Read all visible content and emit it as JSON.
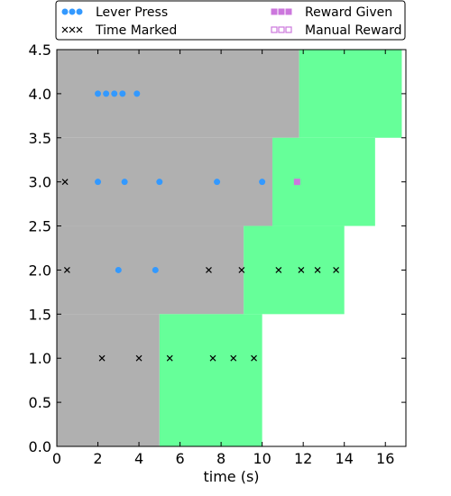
{
  "chart_data": {
    "type": "scatter",
    "title": "",
    "xlabel": "time (s)",
    "ylabel": "",
    "xlim": [
      0,
      17
    ],
    "ylim": [
      0,
      4.5
    ],
    "x_ticks": [
      0,
      2,
      4,
      6,
      8,
      10,
      12,
      14,
      16
    ],
    "y_ticks": [
      0.0,
      0.5,
      1.0,
      1.5,
      2.0,
      2.5,
      3.0,
      3.5,
      4.0,
      4.5
    ],
    "grid": false,
    "legend_position": "top",
    "colors": {
      "background_region": "#b0b0b0",
      "highlight_region": "#66ff99",
      "lever_press": "#3399ff",
      "reward": "#cc77dd",
      "time_marked": "#000000"
    },
    "regions": {
      "gray": [
        {
          "y_from": 3.5,
          "y_to": 4.5,
          "x_from": 0,
          "x_to": 11.8
        },
        {
          "y_from": 2.5,
          "y_to": 3.5,
          "x_from": 0,
          "x_to": 10.5
        },
        {
          "y_from": 1.5,
          "y_to": 2.5,
          "x_from": 0,
          "x_to": 9.1
        },
        {
          "y_from": 0.0,
          "y_to": 1.5,
          "x_from": 0,
          "x_to": 5.0
        }
      ],
      "green": [
        {
          "y_from": 3.5,
          "y_to": 4.5,
          "x_from": 11.8,
          "x_to": 16.8
        },
        {
          "y_from": 2.5,
          "y_to": 3.5,
          "x_from": 10.5,
          "x_to": 15.5
        },
        {
          "y_from": 1.5,
          "y_to": 2.5,
          "x_from": 9.1,
          "x_to": 14.0
        },
        {
          "y_from": 0.0,
          "y_to": 1.5,
          "x_from": 5.0,
          "x_to": 10.0
        }
      ]
    },
    "series": [
      {
        "name": "Lever Press",
        "marker": "circle",
        "points": [
          {
            "x": 2.0,
            "y": 4.0
          },
          {
            "x": 2.4,
            "y": 4.0
          },
          {
            "x": 2.8,
            "y": 4.0
          },
          {
            "x": 3.2,
            "y": 4.0
          },
          {
            "x": 3.9,
            "y": 4.0
          },
          {
            "x": 2.0,
            "y": 3.0
          },
          {
            "x": 3.3,
            "y": 3.0
          },
          {
            "x": 5.0,
            "y": 3.0
          },
          {
            "x": 7.8,
            "y": 3.0
          },
          {
            "x": 10.0,
            "y": 3.0
          },
          {
            "x": 3.0,
            "y": 2.0
          },
          {
            "x": 4.8,
            "y": 2.0
          }
        ]
      },
      {
        "name": "Time Marked",
        "marker": "x",
        "points": [
          {
            "x": 0.4,
            "y": 3.0
          },
          {
            "x": 0.5,
            "y": 2.0
          },
          {
            "x": 7.4,
            "y": 2.0
          },
          {
            "x": 9.0,
            "y": 2.0
          },
          {
            "x": 10.8,
            "y": 2.0
          },
          {
            "x": 11.9,
            "y": 2.0
          },
          {
            "x": 12.7,
            "y": 2.0
          },
          {
            "x": 13.6,
            "y": 2.0
          },
          {
            "x": 2.2,
            "y": 1.0
          },
          {
            "x": 4.0,
            "y": 1.0
          },
          {
            "x": 5.5,
            "y": 1.0
          },
          {
            "x": 7.6,
            "y": 1.0
          },
          {
            "x": 8.6,
            "y": 1.0
          },
          {
            "x": 9.6,
            "y": 1.0
          }
        ]
      },
      {
        "name": "Reward Given",
        "marker": "square-filled",
        "points": [
          {
            "x": 11.7,
            "y": 3.0
          }
        ]
      },
      {
        "name": "Manual Reward",
        "marker": "square-open",
        "points": []
      }
    ],
    "legend": [
      {
        "label": "Lever Press",
        "marker": "circle"
      },
      {
        "label": "Time Marked",
        "marker": "x"
      },
      {
        "label": "Reward Given",
        "marker": "square-filled"
      },
      {
        "label": "Manual Reward",
        "marker": "square-open"
      }
    ]
  }
}
